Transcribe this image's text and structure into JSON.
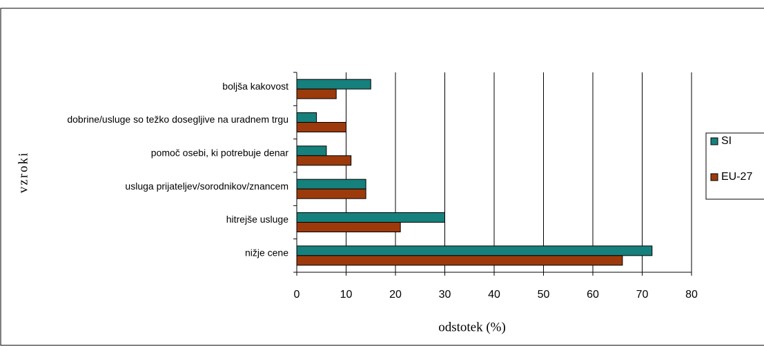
{
  "chart_data": {
    "type": "bar",
    "orientation": "horizontal",
    "x_label": "odstotek (%)",
    "y_label": "vzroki",
    "categories": [
      "boljša kakovost",
      "dobrine/usluge so težko dosegljive na uradnem trgu",
      "pomoč osebi, ki potrebuje denar",
      "usluga prijateljev/sorodnikov/znancem",
      "hitrejše usluge",
      "nižje cene"
    ],
    "series": [
      {
        "name": "SI",
        "color": "#16807c",
        "values": [
          15,
          4,
          6,
          14,
          30,
          72
        ]
      },
      {
        "name": "EU-27",
        "color": "#9c3a0c",
        "values": [
          8,
          10,
          11,
          14,
          21,
          66
        ]
      }
    ],
    "xlim": [
      0,
      80
    ],
    "xticks": [
      0,
      10,
      20,
      30,
      40,
      50,
      60,
      70,
      80
    ],
    "grid": true,
    "legend": "right"
  }
}
